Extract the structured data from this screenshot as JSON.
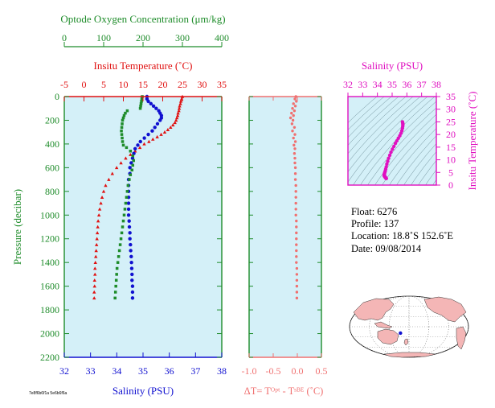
{
  "colors": {
    "oxygen": "#1e8c2a",
    "temperature": "#e01010",
    "salinity": "#1010d0",
    "delta": "#f07070",
    "ts_panel_accent": "#e010c0",
    "plot_bg": "#d4f0f8",
    "land": "#f4b6b6",
    "ocean": "#ffffff"
  },
  "info": {
    "float": "Float:  6276",
    "profile": "Profile:  137",
    "location": "Location:  18.8˚S  152.6˚E",
    "date": "Date:  09/08/2014"
  },
  "map": {
    "marker_lat": -18.8,
    "marker_lon": 152.6,
    "center_lon": 180
  },
  "footer_code": "7e8f6b6f1a 5e6b6f6a",
  "chart_data": [
    {
      "type": "line",
      "panel": "main",
      "title": "",
      "ylabel": "Pressure (decibar)",
      "ylim": [
        0,
        2200
      ],
      "y_inverted": true,
      "y_ticks": [
        "0",
        "200",
        "400",
        "600",
        "800",
        "1000",
        "1200",
        "1400",
        "1600",
        "1800",
        "2000",
        "2200"
      ],
      "axes": {
        "oxygen": {
          "label": "Optode Oxygen Concentration (μm/kg)",
          "range": [
            0,
            400
          ],
          "ticks": [
            "0",
            "100",
            "200",
            "300",
            "400"
          ]
        },
        "temperature": {
          "label": "Insitu Temperature (˚C)",
          "range": [
            -5,
            35
          ],
          "ticks": [
            "-5",
            "0",
            "5",
            "10",
            "15",
            "20",
            "25",
            "30",
            "35"
          ]
        },
        "salinity": {
          "label": "Salinity (PSU)",
          "range": [
            32,
            38
          ],
          "ticks": [
            "32",
            "33",
            "34",
            "35",
            "36",
            "37",
            "38"
          ]
        }
      },
      "series": [
        {
          "name": "Insitu Temperature",
          "axis": "temperature",
          "marker": "triangle",
          "points": [
            [
              25.0,
              0
            ],
            [
              24.8,
              20
            ],
            [
              24.6,
              40
            ],
            [
              24.5,
              60
            ],
            [
              24.3,
              80
            ],
            [
              24.2,
              100
            ],
            [
              24.1,
              120
            ],
            [
              23.9,
              140
            ],
            [
              23.8,
              160
            ],
            [
              23.6,
              180
            ],
            [
              23.4,
              200
            ],
            [
              23.1,
              220
            ],
            [
              22.6,
              240
            ],
            [
              22.0,
              260
            ],
            [
              21.3,
              280
            ],
            [
              20.5,
              300
            ],
            [
              19.6,
              320
            ],
            [
              18.6,
              340
            ],
            [
              17.5,
              360
            ],
            [
              16.5,
              380
            ],
            [
              15.3,
              400
            ],
            [
              14.2,
              430
            ],
            [
              13.0,
              460
            ],
            [
              11.8,
              490
            ],
            [
              10.6,
              520
            ],
            [
              9.4,
              560
            ],
            [
              8.3,
              600
            ],
            [
              7.2,
              650
            ],
            [
              6.3,
              700
            ],
            [
              5.5,
              750
            ],
            [
              5.0,
              800
            ],
            [
              4.6,
              850
            ],
            [
              4.3,
              900
            ],
            [
              4.0,
              950
            ],
            [
              3.8,
              1000
            ],
            [
              3.6,
              1050
            ],
            [
              3.5,
              1100
            ],
            [
              3.4,
              1150
            ],
            [
              3.3,
              1200
            ],
            [
              3.2,
              1250
            ],
            [
              3.1,
              1300
            ],
            [
              3.0,
              1350
            ],
            [
              2.9,
              1400
            ],
            [
              2.8,
              1450
            ],
            [
              2.8,
              1500
            ],
            [
              2.7,
              1550
            ],
            [
              2.7,
              1600
            ],
            [
              2.6,
              1650
            ],
            [
              2.6,
              1700
            ]
          ]
        },
        {
          "name": "Salinity",
          "axis": "salinity",
          "marker": "circle",
          "points": [
            [
              35.15,
              0
            ],
            [
              35.15,
              20
            ],
            [
              35.2,
              40
            ],
            [
              35.3,
              60
            ],
            [
              35.4,
              80
            ],
            [
              35.5,
              100
            ],
            [
              35.6,
              120
            ],
            [
              35.65,
              140
            ],
            [
              35.7,
              160
            ],
            [
              35.7,
              180
            ],
            [
              35.65,
              200
            ],
            [
              35.55,
              230
            ],
            [
              35.45,
              260
            ],
            [
              35.35,
              290
            ],
            [
              35.2,
              320
            ],
            [
              35.05,
              350
            ],
            [
              34.9,
              380
            ],
            [
              34.8,
              410
            ],
            [
              34.7,
              440
            ],
            [
              34.65,
              480
            ],
            [
              34.6,
              520
            ],
            [
              34.55,
              560
            ],
            [
              34.5,
              600
            ],
            [
              34.5,
              650
            ],
            [
              34.45,
              700
            ],
            [
              34.45,
              750
            ],
            [
              34.45,
              800
            ],
            [
              34.45,
              850
            ],
            [
              34.45,
              900
            ],
            [
              34.45,
              950
            ],
            [
              34.45,
              1000
            ],
            [
              34.47,
              1050
            ],
            [
              34.48,
              1100
            ],
            [
              34.5,
              1150
            ],
            [
              34.5,
              1200
            ],
            [
              34.52,
              1250
            ],
            [
              34.53,
              1300
            ],
            [
              34.55,
              1350
            ],
            [
              34.56,
              1400
            ],
            [
              34.57,
              1450
            ],
            [
              34.58,
              1500
            ],
            [
              34.58,
              1550
            ],
            [
              34.6,
              1600
            ],
            [
              34.6,
              1650
            ],
            [
              34.6,
              1700
            ]
          ]
        },
        {
          "name": "Optode Oxygen Concentration",
          "axis": "oxygen",
          "marker": "square",
          "points": [
            [
              198,
              0
            ],
            [
              197,
              20
            ],
            [
              196,
              40
            ],
            [
              195,
              60
            ],
            [
              194,
              80
            ],
            [
              193,
              100
            ],
            [
              160,
              120
            ],
            [
              155,
              140
            ],
            [
              152,
              160
            ],
            [
              150,
              180
            ],
            [
              148,
              200
            ],
            [
              147,
              230
            ],
            [
              146,
              260
            ],
            [
              145,
              290
            ],
            [
              146,
              320
            ],
            [
              147,
              350
            ],
            [
              148,
              380
            ],
            [
              150,
              410
            ],
            [
              158,
              430
            ],
            [
              168,
              460
            ],
            [
              174,
              500
            ],
            [
              176,
              540
            ],
            [
              174,
              580
            ],
            [
              172,
              620
            ],
            [
              168,
              660
            ],
            [
              165,
              700
            ],
            [
              162,
              750
            ],
            [
              160,
              800
            ],
            [
              158,
              850
            ],
            [
              156,
              900
            ],
            [
              154,
              950
            ],
            [
              152,
              1000
            ],
            [
              150,
              1050
            ],
            [
              148,
              1100
            ],
            [
              146,
              1150
            ],
            [
              144,
              1200
            ],
            [
              142,
              1250
            ],
            [
              140,
              1300
            ],
            [
              138,
              1350
            ],
            [
              136,
              1400
            ],
            [
              134,
              1450
            ],
            [
              133,
              1500
            ],
            [
              132,
              1550
            ],
            [
              131,
              1600
            ],
            [
              130,
              1650
            ],
            [
              129,
              1700
            ]
          ]
        }
      ],
      "bottom_label": "Salinity (PSU)"
    },
    {
      "type": "scatter",
      "panel": "delta",
      "xlabel": "ΔT= Tᴼᵖᵗ - Tˢᴮᴱ (˚C)",
      "xlim": [
        -1.0,
        0.5
      ],
      "ylim": [
        0,
        2200
      ],
      "y_inverted": true,
      "x_ticks": [
        "-1.0",
        "-0.5",
        "0.0",
        "0.5"
      ],
      "series": [
        {
          "name": "ΔT",
          "points": [
            [
              -0.03,
              0
            ],
            [
              -0.05,
              20
            ],
            [
              -0.02,
              40
            ],
            [
              -0.08,
              60
            ],
            [
              -0.04,
              80
            ],
            [
              -0.1,
              100
            ],
            [
              -0.06,
              120
            ],
            [
              -0.12,
              140
            ],
            [
              -0.08,
              160
            ],
            [
              -0.14,
              180
            ],
            [
              -0.09,
              200
            ],
            [
              -0.11,
              230
            ],
            [
              -0.06,
              260
            ],
            [
              -0.1,
              290
            ],
            [
              -0.05,
              320
            ],
            [
              -0.08,
              350
            ],
            [
              -0.04,
              380
            ],
            [
              -0.07,
              410
            ],
            [
              -0.05,
              440
            ],
            [
              -0.06,
              480
            ],
            [
              -0.05,
              520
            ],
            [
              -0.05,
              560
            ],
            [
              -0.04,
              600
            ],
            [
              -0.04,
              650
            ],
            [
              -0.04,
              700
            ],
            [
              -0.03,
              750
            ],
            [
              -0.03,
              800
            ],
            [
              -0.03,
              850
            ],
            [
              -0.03,
              900
            ],
            [
              -0.03,
              950
            ],
            [
              -0.03,
              1000
            ],
            [
              -0.02,
              1050
            ],
            [
              -0.02,
              1100
            ],
            [
              -0.02,
              1150
            ],
            [
              -0.02,
              1200
            ],
            [
              -0.02,
              1250
            ],
            [
              -0.02,
              1300
            ],
            [
              -0.02,
              1350
            ],
            [
              -0.02,
              1400
            ],
            [
              -0.01,
              1450
            ],
            [
              -0.01,
              1500
            ],
            [
              -0.01,
              1550
            ],
            [
              -0.01,
              1600
            ],
            [
              -0.01,
              1650
            ],
            [
              -0.01,
              1700
            ]
          ]
        }
      ]
    },
    {
      "type": "scatter",
      "panel": "ts",
      "title": "Salinity (PSU)",
      "ylabel": "Insitu Temperature (˚C)",
      "xlim": [
        32,
        38
      ],
      "ylim": [
        0,
        35
      ],
      "x_ticks": [
        "32",
        "33",
        "34",
        "35",
        "36",
        "37",
        "38"
      ],
      "y_ticks": [
        "0",
        "5",
        "10",
        "15",
        "20",
        "25",
        "30",
        "35"
      ],
      "series": [
        {
          "name": "T-S",
          "points": [
            [
              35.7,
              25.0
            ],
            [
              35.72,
              24.5
            ],
            [
              35.73,
              24.0
            ],
            [
              35.72,
              23.3
            ],
            [
              35.7,
              22.5
            ],
            [
              35.66,
              21.5
            ],
            [
              35.6,
              20.5
            ],
            [
              35.52,
              19.5
            ],
            [
              35.42,
              18.5
            ],
            [
              35.32,
              17.5
            ],
            [
              35.22,
              16.5
            ],
            [
              35.12,
              15.3
            ],
            [
              35.02,
              14.2
            ],
            [
              34.92,
              13.0
            ],
            [
              34.84,
              11.8
            ],
            [
              34.76,
              10.6
            ],
            [
              34.7,
              9.4
            ],
            [
              34.64,
              8.3
            ],
            [
              34.6,
              7.2
            ],
            [
              34.56,
              6.3
            ],
            [
              34.53,
              5.5
            ],
            [
              34.5,
              5.0
            ],
            [
              34.48,
              4.6
            ],
            [
              34.47,
              4.3
            ],
            [
              34.46,
              4.0
            ],
            [
              34.46,
              3.8
            ],
            [
              34.47,
              3.6
            ],
            [
              34.48,
              3.5
            ],
            [
              34.5,
              3.4
            ],
            [
              34.51,
              3.3
            ],
            [
              34.52,
              3.2
            ],
            [
              34.53,
              3.1
            ],
            [
              34.55,
              3.0
            ],
            [
              34.56,
              2.9
            ],
            [
              34.57,
              2.8
            ],
            [
              34.58,
              2.8
            ],
            [
              34.59,
              2.7
            ],
            [
              34.6,
              2.7
            ],
            [
              34.6,
              2.6
            ]
          ]
        }
      ]
    }
  ]
}
